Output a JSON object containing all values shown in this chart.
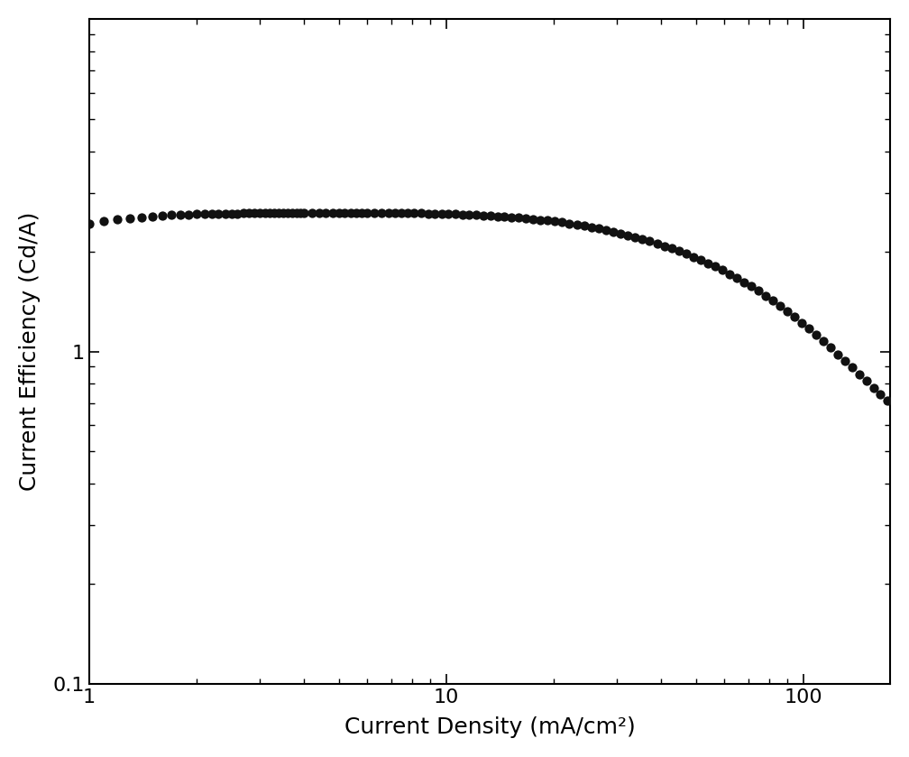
{
  "xlabel": "Current Density (mA/cm²)",
  "ylabel": "Current Efficiency (Cd/A)",
  "xlim": [
    1,
    175
  ],
  "ylim": [
    0.1,
    10
  ],
  "x_data": [
    1.0,
    1.1,
    1.2,
    1.3,
    1.4,
    1.5,
    1.6,
    1.7,
    1.8,
    1.9,
    2.0,
    2.1,
    2.2,
    2.3,
    2.4,
    2.5,
    2.6,
    2.7,
    2.8,
    2.9,
    3.0,
    3.1,
    3.2,
    3.3,
    3.4,
    3.5,
    3.6,
    3.7,
    3.8,
    3.9,
    4.0,
    4.2,
    4.4,
    4.6,
    4.8,
    5.0,
    5.2,
    5.4,
    5.6,
    5.8,
    6.0,
    6.3,
    6.6,
    6.9,
    7.2,
    7.5,
    7.8,
    8.1,
    8.5,
    8.9,
    9.3,
    9.7,
    10.1,
    10.6,
    11.1,
    11.6,
    12.1,
    12.7,
    13.3,
    13.9,
    14.5,
    15.2,
    15.9,
    16.7,
    17.5,
    18.3,
    19.2,
    20.1,
    21.1,
    22.1,
    23.2,
    24.3,
    25.5,
    26.7,
    28.0,
    29.3,
    30.7,
    32.2,
    33.8,
    35.4,
    37.1,
    38.9,
    40.8,
    42.7,
    44.8,
    46.9,
    49.1,
    51.5,
    53.9,
    56.5,
    59.2,
    62.0,
    65.0,
    68.1,
    71.3,
    74.7,
    78.3,
    82.0,
    85.9,
    90.0,
    94.3,
    98.8,
    103.5,
    108.4,
    113.6,
    119.0,
    124.6,
    130.5,
    136.7,
    143.1,
    149.9,
    157.0,
    164.4,
    172.2
  ],
  "y_data": [
    2.42,
    2.46,
    2.49,
    2.51,
    2.53,
    2.55,
    2.56,
    2.57,
    2.575,
    2.58,
    2.585,
    2.59,
    2.592,
    2.594,
    2.596,
    2.598,
    2.6,
    2.601,
    2.602,
    2.603,
    2.604,
    2.605,
    2.606,
    2.607,
    2.608,
    2.609,
    2.61,
    2.611,
    2.612,
    2.612,
    2.613,
    2.614,
    2.614,
    2.614,
    2.614,
    2.614,
    2.614,
    2.614,
    2.613,
    2.613,
    2.612,
    2.611,
    2.61,
    2.609,
    2.608,
    2.607,
    2.605,
    2.603,
    2.601,
    2.599,
    2.596,
    2.593,
    2.59,
    2.586,
    2.582,
    2.577,
    2.572,
    2.566,
    2.559,
    2.552,
    2.544,
    2.535,
    2.525,
    2.514,
    2.502,
    2.489,
    2.475,
    2.46,
    2.443,
    2.425,
    2.406,
    2.386,
    2.364,
    2.341,
    2.317,
    2.291,
    2.264,
    2.236,
    2.206,
    2.175,
    2.143,
    2.11,
    2.075,
    2.04,
    2.003,
    1.965,
    1.926,
    1.885,
    1.843,
    1.8,
    1.756,
    1.711,
    1.664,
    1.617,
    1.569,
    1.52,
    1.471,
    1.421,
    1.371,
    1.32,
    1.27,
    1.22,
    1.17,
    1.121,
    1.073,
    1.026,
    0.98,
    0.936,
    0.894,
    0.854,
    0.815,
    0.779,
    0.745,
    0.713
  ],
  "marker_color": "#111111",
  "marker_size": 55,
  "background_color": "#ffffff",
  "xlabel_fontsize": 18,
  "ylabel_fontsize": 18,
  "tick_labelsize": 16
}
